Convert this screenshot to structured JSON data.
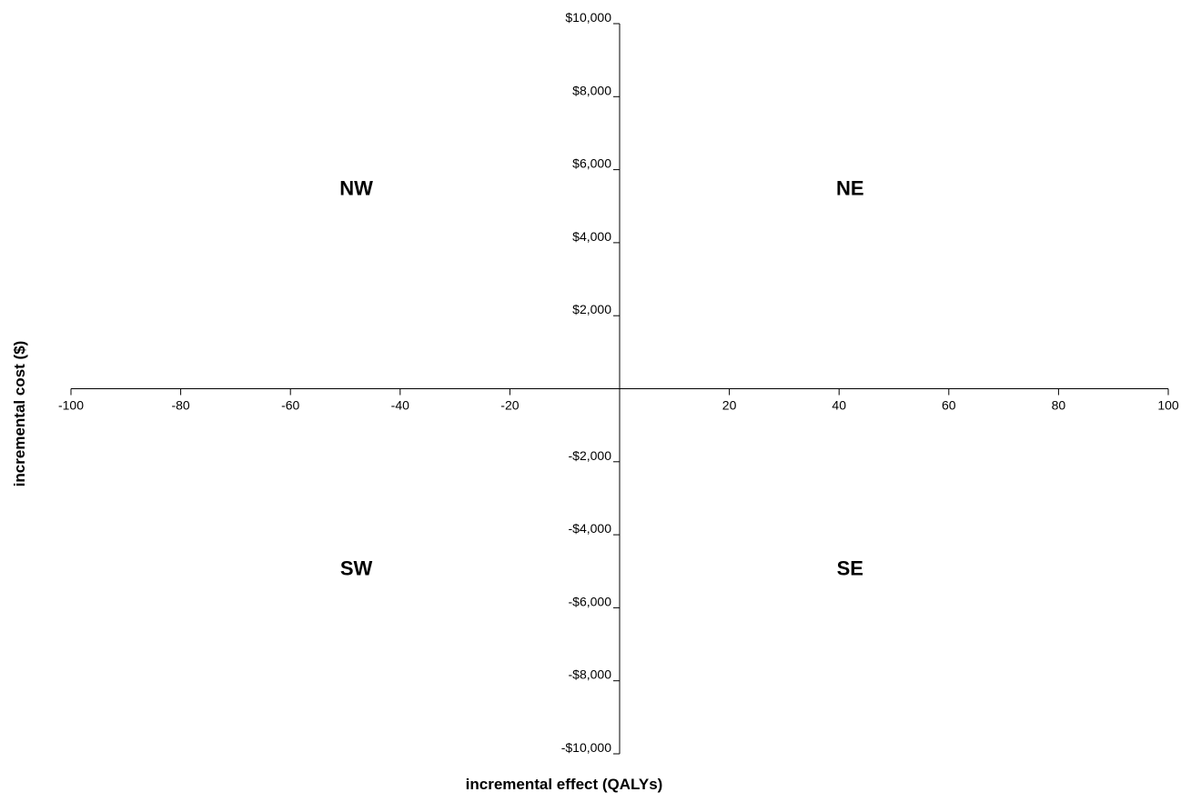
{
  "chart_data": {
    "type": "scatter",
    "title": "",
    "xlabel": "incremental effect (QALYs)",
    "ylabel": "incremental cost ($)",
    "xlim": [
      -100,
      100
    ],
    "ylim": [
      -10000,
      10000
    ],
    "x_ticks": [
      -100,
      -80,
      -60,
      -40,
      -20,
      0,
      20,
      40,
      60,
      80,
      100
    ],
    "x_tick_labels": [
      "-100",
      "-80",
      "-60",
      "-40",
      "-20",
      "",
      "20",
      "40",
      "60",
      "80",
      "100"
    ],
    "y_ticks": [
      10000,
      8000,
      6000,
      4000,
      2000,
      0,
      -2000,
      -4000,
      -6000,
      -8000,
      -10000
    ],
    "y_tick_labels": [
      "$10,000",
      "$8,000",
      "$6,000",
      "$4,000",
      "$2,000",
      "",
      "-$2,000",
      "-$4,000",
      "-$6,000",
      "-$8,000",
      "-$10,000"
    ],
    "quadrants": [
      {
        "label": "NW",
        "x": -48,
        "y": 5300
      },
      {
        "label": "NE",
        "x": 42,
        "y": 5300
      },
      {
        "label": "SW",
        "x": -48,
        "y": -5100
      },
      {
        "label": "SE",
        "x": 42,
        "y": -5100
      }
    ],
    "series": [],
    "grid": false,
    "legend": "none"
  }
}
